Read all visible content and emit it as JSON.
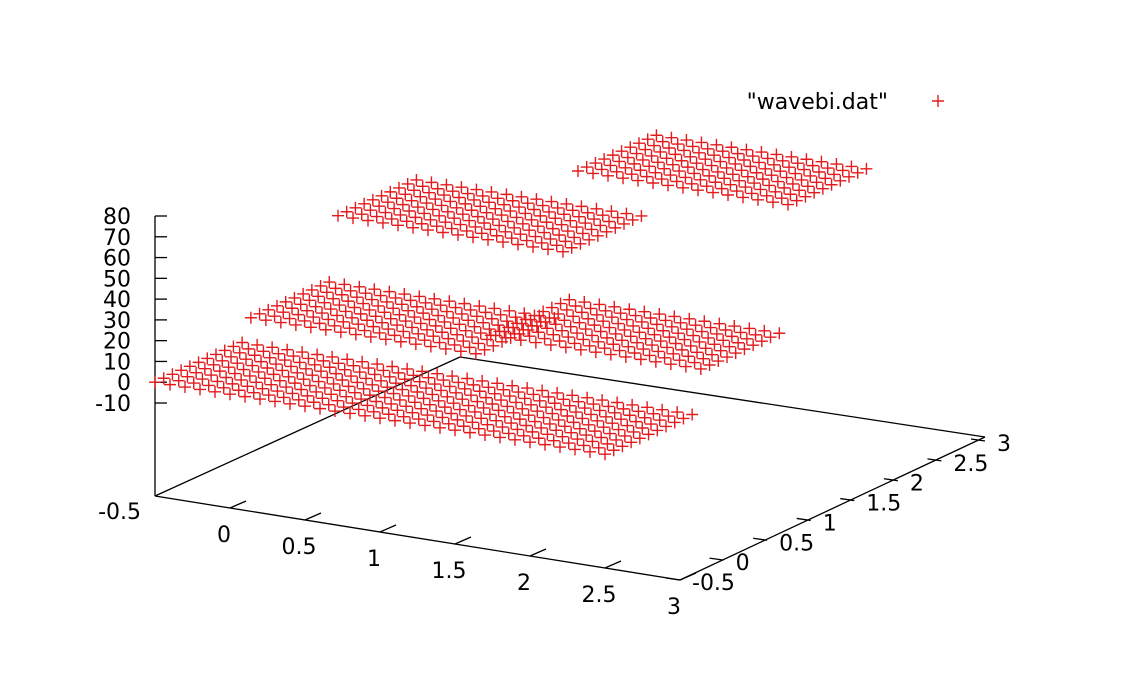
{
  "chart_data": {
    "type": "scatter",
    "subtype": "3d-scatter",
    "title": "",
    "xlabel": "",
    "ylabel": "",
    "zlabel": "",
    "xlim": [
      -0.5,
      3
    ],
    "ylim": [
      -0.5,
      3
    ],
    "zlim": [
      -10,
      80
    ],
    "x_ticks": [
      "0",
      "0.5",
      "1",
      "1.5",
      "2",
      "2.5",
      "3"
    ],
    "y_ticks": [
      "-0.5",
      "0",
      "0.5",
      "1",
      "1.5",
      "2",
      "2.5",
      "3"
    ],
    "z_ticks": [
      "80",
      "70",
      "60",
      "50",
      "40",
      "30",
      "20",
      "10",
      "0",
      "-10"
    ],
    "z_floor_label": "-0.5",
    "grid": false,
    "legend_position": "top-right",
    "series": [
      {
        "name": "\"wavebi.dat\"",
        "marker": "+",
        "color": "#e41a1c",
        "grid": {
          "x_start": -0.5,
          "x_end": 2.5,
          "x_step": 0.1,
          "y_start": -0.5,
          "y_end": 2.5,
          "y_step": 0.1
        },
        "regions": [
          {
            "x": [
              -0.5,
              2.5
            ],
            "y": [
              -0.5,
              0.5
            ],
            "z": 0
          },
          {
            "x": [
              -0.5,
              1.0
            ],
            "y": [
              0.5,
              1.5
            ],
            "z": 10
          },
          {
            "x": [
              1.0,
              2.5
            ],
            "y": [
              0.5,
              1.5
            ],
            "z": 20
          },
          {
            "x": [
              -0.5,
              1.0
            ],
            "y": [
              1.5,
              2.5
            ],
            "z": 40
          },
          {
            "x": [
              1.0,
              2.5
            ],
            "y": [
              1.5,
              2.5
            ],
            "z": 80
          }
        ]
      }
    ]
  }
}
